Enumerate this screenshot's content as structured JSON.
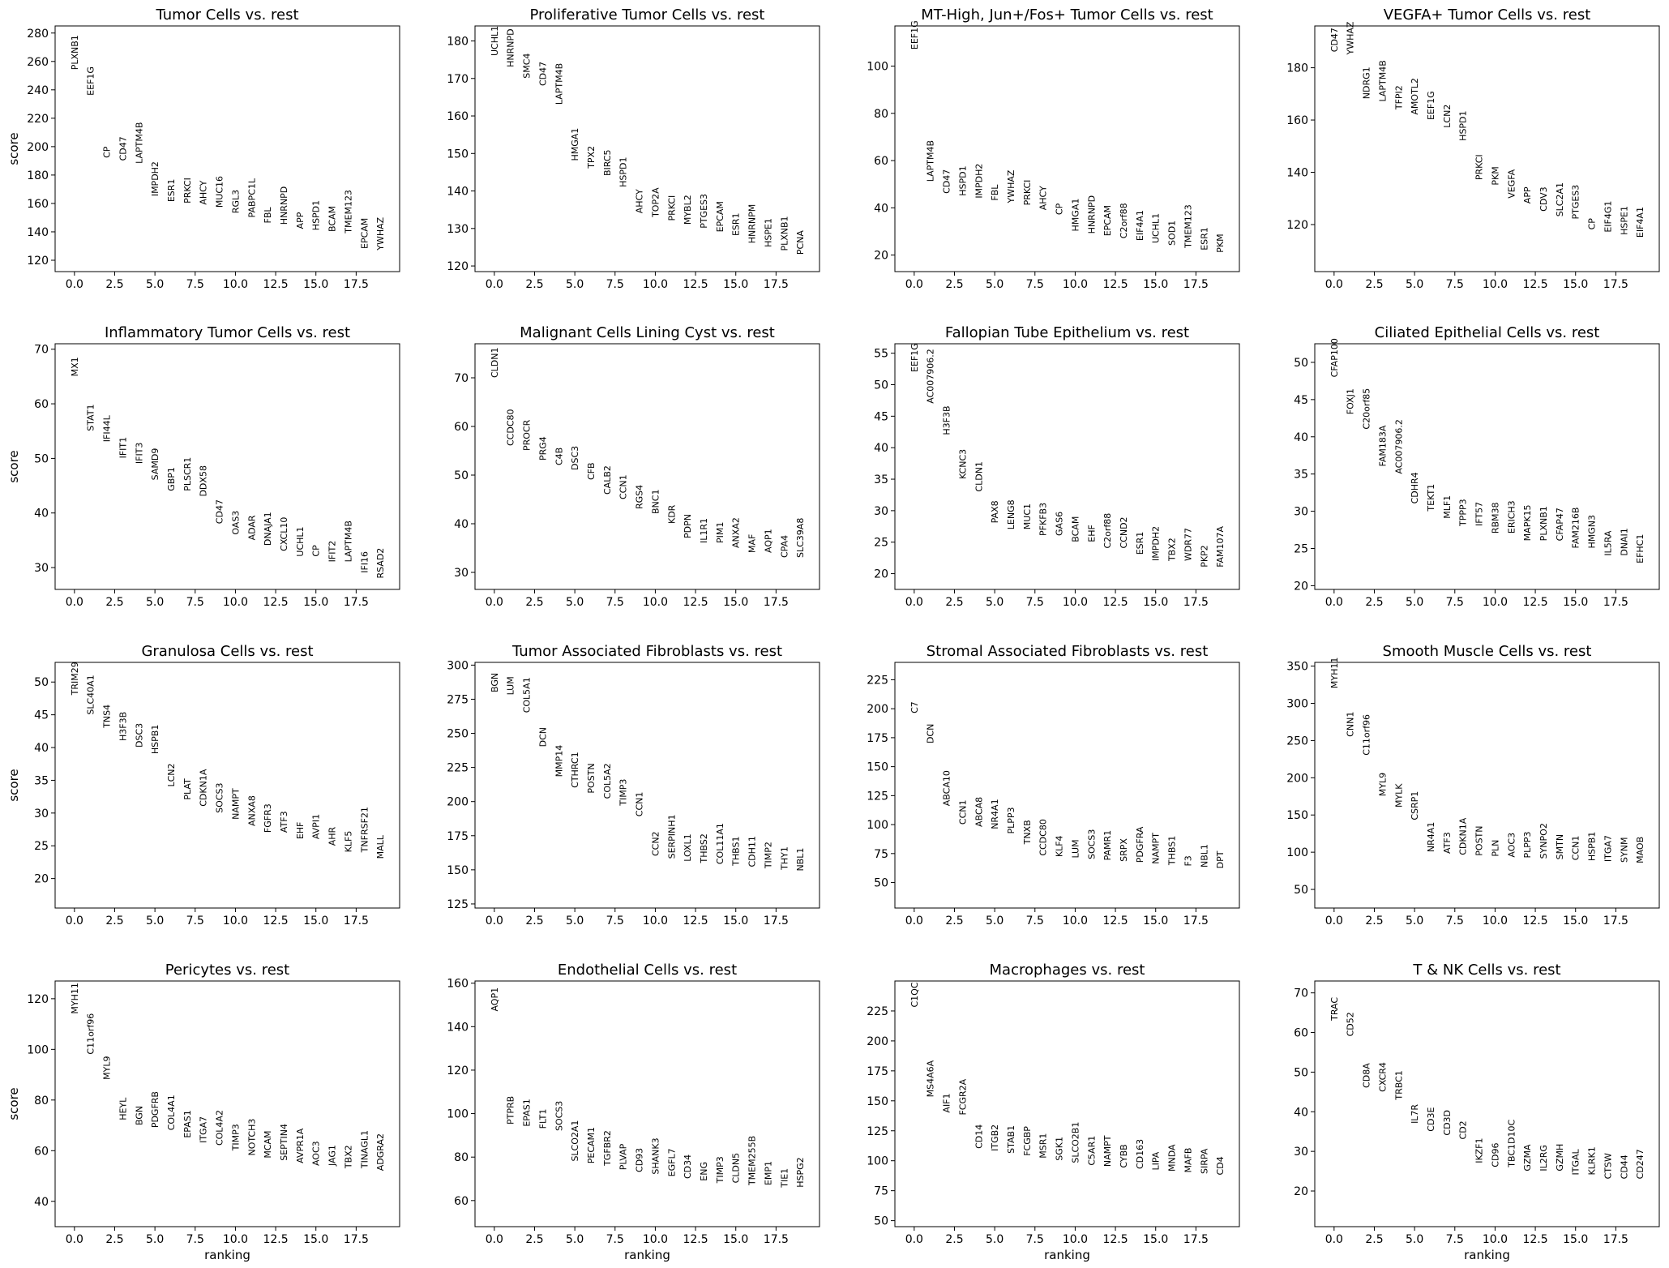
{
  "chart_data": [
    {
      "type": "scatter",
      "title": "Tumor Cells vs. rest",
      "xlabel": "",
      "ylabel": "score",
      "ylim": [
        112,
        285
      ],
      "yticks": [
        120,
        140,
        160,
        180,
        200,
        220,
        240,
        260,
        280
      ],
      "genes": [
        "PLXNB1",
        "EEF1G",
        "CP",
        "CD47",
        "LAPTM4B",
        "IMPDH2",
        "ESR1",
        "PRKCI",
        "AHCY",
        "MUC16",
        "RGL3",
        "PABPC1L",
        "FBL",
        "HNRNPD",
        "APP",
        "HSPD1",
        "BCAM",
        "TMEM123",
        "EPCAM",
        "YWHAZ"
      ],
      "values": [
        254,
        236,
        192,
        190,
        188,
        165,
        161,
        160,
        159,
        157,
        153,
        150,
        146,
        145,
        142,
        141,
        140,
        139,
        128,
        127
      ]
    },
    {
      "type": "scatter",
      "title": "Proliferative Tumor Cells vs. rest",
      "xlabel": "",
      "ylabel": "",
      "ylim": [
        118.5,
        184
      ],
      "yticks": [
        120,
        130,
        140,
        150,
        160,
        170,
        180
      ],
      "genes": [
        "UCHL1",
        "HNRNPD",
        "SMC4",
        "CD47",
        "LAPTM4B",
        "HMGA1",
        "TPX2",
        "BIRC5",
        "HSPD1",
        "AHCY",
        "TOP2A",
        "PRKCI",
        "MYBL2",
        "PTGES3",
        "EPCAM",
        "ESR1",
        "HNRNPM",
        "HSPE1",
        "PLXNB1",
        "PCNA"
      ],
      "values": [
        176,
        173,
        170,
        168,
        163,
        148,
        146,
        144,
        141,
        134,
        133,
        132,
        131,
        130,
        129,
        128,
        126,
        125,
        124,
        123
      ]
    },
    {
      "type": "scatter",
      "title": "MT-High, Jun+/Fos+ Tumor Cells vs. rest",
      "xlabel": "",
      "ylabel": "",
      "ylim": [
        13,
        117
      ],
      "yticks": [
        20,
        40,
        60,
        80,
        100
      ],
      "genes": [
        "EEF1G",
        "LAPTM4B",
        "CD47",
        "HSPD1",
        "IMPDH2",
        "FBL",
        "YWHAZ",
        "PRKCI",
        "AHCY",
        "CP",
        "HMGA1",
        "HNRNPD",
        "EPCAM",
        "C2orf88",
        "EIF4A1",
        "UCHL1",
        "SOD1",
        "TMEM123",
        "ESR1",
        "PKM"
      ],
      "values": [
        107,
        51,
        46,
        45,
        44,
        43,
        42,
        41,
        39,
        37,
        30,
        29,
        28,
        27,
        26,
        25,
        24,
        23,
        22,
        21
      ]
    },
    {
      "type": "scatter",
      "title": "VEGFA+ Tumor Cells vs. rest",
      "xlabel": "",
      "ylabel": "",
      "ylim": [
        102,
        196
      ],
      "yticks": [
        120,
        140,
        160,
        180
      ],
      "genes": [
        "CD47",
        "YWHAZ",
        "NDRG1",
        "LAPTM4B",
        "TFPI2",
        "AMOTL2",
        "EEF1G",
        "LCN2",
        "HSPD1",
        "PRKCI",
        "PKM",
        "VEGFA",
        "APP",
        "CDV3",
        "SLC2A1",
        "PTGES3",
        "CP",
        "EIF4G1",
        "HSPE1",
        "EIF4A1"
      ],
      "values": [
        186,
        185,
        168,
        167,
        164,
        162,
        160,
        157,
        152,
        137,
        135,
        130,
        128,
        125,
        123,
        122,
        118,
        117,
        116,
        115
      ]
    },
    {
      "type": "scatter",
      "title": "Inflammatory Tumor Cells vs. rest",
      "xlabel": "",
      "ylabel": "score",
      "ylim": [
        26,
        71
      ],
      "yticks": [
        30,
        40,
        50,
        60,
        70
      ],
      "genes": [
        "MX1",
        "STAT1",
        "IFI44L",
        "IFIT1",
        "IFIT3",
        "SAMD9",
        "GBP1",
        "PLSCR1",
        "DDX58",
        "CD47",
        "OAS3",
        "ADAR",
        "DNAJA1",
        "CXCL10",
        "UCHL1",
        "CP",
        "IFIT2",
        "LAPTM4B",
        "IFI16",
        "RSAD2"
      ],
      "values": [
        65,
        55,
        53,
        50,
        49,
        46,
        44,
        44,
        43,
        38,
        36,
        35,
        34,
        33,
        32,
        32,
        31,
        31,
        29,
        28
      ]
    },
    {
      "type": "scatter",
      "title": "Malignant Cells Lining Cyst vs. rest",
      "xlabel": "",
      "ylabel": "",
      "ylim": [
        26.5,
        77
      ],
      "yticks": [
        30,
        40,
        50,
        60,
        70
      ],
      "genes": [
        "CLDN1",
        "CCDC80",
        "PROCR",
        "PRG4",
        "C4B",
        "DSC3",
        "CFB",
        "CALB2",
        "CCN1",
        "RGS4",
        "BNC1",
        "KDR",
        "PDPN",
        "IL1R1",
        "PIM1",
        "ANXA2",
        "MAF",
        "AQP1",
        "CPA4",
        "SLC39A8"
      ],
      "values": [
        70,
        56,
        55,
        53,
        52,
        51,
        49,
        46,
        45,
        43,
        42,
        40,
        37,
        36,
        36,
        35,
        34,
        34,
        33,
        33
      ]
    },
    {
      "type": "scatter",
      "title": "Fallopian Tube Epithelium vs. rest",
      "xlabel": "",
      "ylabel": "",
      "ylim": [
        17.5,
        56.5
      ],
      "yticks": [
        20,
        25,
        30,
        35,
        40,
        45,
        50,
        55
      ],
      "genes": [
        "EEF1G",
        "AC007906.2",
        "H3F3B",
        "KCNC3",
        "CLDN1",
        "PAX8",
        "LENG8",
        "MUC1",
        "PFKFB3",
        "GAS6",
        "BCAM",
        "EHF",
        "C2orf88",
        "CCND2",
        "ESR1",
        "IMPDH2",
        "TBX2",
        "WDR77",
        "PKP2",
        "FAM107A"
      ],
      "values": [
        52,
        47,
        42,
        35,
        33,
        28,
        27,
        27,
        26,
        26,
        25,
        25,
        24,
        24,
        23,
        22,
        22,
        22,
        21,
        21
      ]
    },
    {
      "type": "scatter",
      "title": "Ciliated Epithelial Cells vs. rest",
      "xlabel": "",
      "ylabel": "",
      "ylim": [
        19.5,
        52.5
      ],
      "yticks": [
        20,
        25,
        30,
        35,
        40,
        45,
        50
      ],
      "genes": [
        "CFAP100",
        "FOXJ1",
        "C20orf85",
        "FAM183A",
        "AC007906.2",
        "CDHR4",
        "TEKT1",
        "MLF1",
        "TPPP3",
        "IFT57",
        "RBM38",
        "ERICH3",
        "MAPK15",
        "PLXNB1",
        "CFAP47",
        "FAM216B",
        "HMGN3",
        "IL5RA",
        "DNAI1",
        "EFHC1"
      ],
      "values": [
        48,
        43,
        41,
        36,
        35,
        31,
        30,
        29,
        28,
        28,
        27,
        27,
        26,
        26,
        26,
        25,
        25,
        24,
        24,
        23
      ]
    },
    {
      "type": "scatter",
      "title": "Granulosa Cells vs. rest",
      "xlabel": "",
      "ylabel": "score",
      "ylim": [
        15.5,
        53
      ],
      "yticks": [
        20,
        25,
        30,
        35,
        40,
        45,
        50
      ],
      "genes": [
        "TRIM29",
        "SLC40A1",
        "TNS4",
        "H3F3B",
        "DSC3",
        "HSPB1",
        "LCN2",
        "PLAT",
        "CDKN1A",
        "SOCS3",
        "NAMPT",
        "ANXA8",
        "FGFR3",
        "ATF3",
        "EHF",
        "AVPI1",
        "AHR",
        "KLF5",
        "TNFRSF21",
        "MALL"
      ],
      "values": [
        48,
        45,
        43,
        41,
        40,
        39,
        34,
        32,
        31,
        30,
        29,
        28,
        27,
        27,
        26,
        26,
        25,
        24,
        24,
        23
      ]
    },
    {
      "type": "scatter",
      "title": "Tumor Associated Fibroblasts vs. rest",
      "xlabel": "",
      "ylabel": "",
      "ylim": [
        122,
        302
      ],
      "yticks": [
        125,
        150,
        175,
        200,
        225,
        250,
        275,
        300
      ],
      "genes": [
        "BGN",
        "LUM",
        "COL5A1",
        "DCN",
        "MMP14",
        "CTHRC1",
        "POSTN",
        "COL5A2",
        "TIMP3",
        "CCN1",
        "CCN2",
        "SERPINH1",
        "LOXL1",
        "THBS2",
        "COL11A1",
        "THBS1",
        "CDH11",
        "TIMP2",
        "THY1",
        "NBL1"
      ],
      "values": [
        280,
        278,
        265,
        240,
        218,
        210,
        206,
        202,
        197,
        189,
        160,
        158,
        156,
        155,
        154,
        153,
        152,
        151,
        150,
        149
      ]
    },
    {
      "type": "scatter",
      "title": "Stromal Associated Fibroblasts vs. rest",
      "xlabel": "",
      "ylabel": "",
      "ylim": [
        28,
        240
      ],
      "yticks": [
        50,
        75,
        100,
        125,
        150,
        175,
        200,
        225
      ],
      "genes": [
        "C7",
        "DCN",
        "ABCA10",
        "CCN1",
        "ABCA8",
        "NR4A1",
        "PLPP3",
        "TNXB",
        "CCDC80",
        "KLF4",
        "LUM",
        "SOCS3",
        "PAMR1",
        "SRPX",
        "PDGFRA",
        "NAMPT",
        "THBS1",
        "F3",
        "NBL1",
        "DPT"
      ],
      "values": [
        196,
        170,
        116,
        100,
        98,
        96,
        92,
        83,
        73,
        72,
        71,
        70,
        69,
        68,
        67,
        66,
        65,
        64,
        63,
        62
      ]
    },
    {
      "type": "scatter",
      "title": "Smooth Muscle Cells vs. rest",
      "xlabel": "",
      "ylabel": "",
      "ylim": [
        25,
        355
      ],
      "yticks": [
        50,
        100,
        150,
        200,
        250,
        300,
        350
      ],
      "genes": [
        "MYH11",
        "CNN1",
        "C11orf96",
        "MYL9",
        "MYLK",
        "CSRP1",
        "NR4A1",
        "ATF3",
        "CDKN1A",
        "POSTN",
        "PLN",
        "AOC3",
        "PLPP3",
        "SYNPO2",
        "SMTN",
        "CCN1",
        "HSPB1",
        "ITGA7",
        "SYNM",
        "MAOB"
      ],
      "values": [
        320,
        255,
        230,
        175,
        160,
        143,
        100,
        98,
        96,
        95,
        94,
        93,
        92,
        91,
        90,
        89,
        88,
        87,
        86,
        85
      ]
    },
    {
      "type": "scatter",
      "title": "Pericytes vs. rest",
      "xlabel": "ranking",
      "ylabel": "score",
      "ylim": [
        30,
        127
      ],
      "yticks": [
        40,
        60,
        80,
        100,
        120
      ],
      "genes": [
        "MYH11",
        "C11orf96",
        "MYL9",
        "HEYL",
        "BGN",
        "PDGFRB",
        "COL4A1",
        "EPAS1",
        "ITGA7",
        "COL4A2",
        "TIMP3",
        "NOTCH3",
        "MCAM",
        "SEPTIN4",
        "AVPR1A",
        "AOC3",
        "JAG1",
        "TBX2",
        "TINAGL1",
        "ADGRA2"
      ],
      "values": [
        114,
        98,
        88,
        72,
        70,
        69,
        68,
        65,
        63,
        62,
        60,
        58,
        57,
        56,
        55,
        54,
        54,
        53,
        53,
        52
      ]
    },
    {
      "type": "scatter",
      "title": "Endothelial Cells vs. rest",
      "xlabel": "ranking",
      "ylabel": "",
      "ylim": [
        48,
        161
      ],
      "yticks": [
        60,
        80,
        100,
        120,
        140,
        160
      ],
      "genes": [
        "AQP1",
        "PTPRB",
        "EPAS1",
        "FLT1",
        "SOCS3",
        "SLCO2A1",
        "PECAM1",
        "TGFBR2",
        "PLVAP",
        "CD93",
        "SHANK3",
        "EGFL7",
        "CD34",
        "ENG",
        "TIMP3",
        "CLDN5",
        "TMEM255B",
        "EMP1",
        "TIE1",
        "HSPG2"
      ],
      "values": [
        147,
        95,
        94,
        93,
        92,
        78,
        77,
        76,
        74,
        73,
        72,
        71,
        70,
        69,
        68,
        68,
        67,
        67,
        66,
        66
      ]
    },
    {
      "type": "scatter",
      "title": "Macrophages vs. rest",
      "xlabel": "ranking",
      "ylabel": "",
      "ylim": [
        45,
        250
      ],
      "yticks": [
        50,
        75,
        100,
        125,
        150,
        175,
        200,
        225
      ],
      "genes": [
        "C1QC",
        "MS4A6A",
        "AIF1",
        "FCGR2A",
        "CD14",
        "ITGB2",
        "STAB1",
        "FCGBP",
        "MSR1",
        "SGK1",
        "SLCO2B1",
        "C5AR1",
        "NAMPT",
        "CYBB",
        "CD163",
        "LIPA",
        "MNDA",
        "MAFB",
        "SIRPA",
        "CD4"
      ],
      "values": [
        228,
        153,
        140,
        138,
        110,
        108,
        106,
        104,
        102,
        100,
        98,
        96,
        95,
        94,
        93,
        92,
        91,
        90,
        89,
        88
      ]
    },
    {
      "type": "scatter",
      "title": "T & NK Cells vs. rest",
      "xlabel": "ranking",
      "ylabel": "",
      "ylim": [
        11,
        73
      ],
      "yticks": [
        20,
        30,
        40,
        50,
        60,
        70
      ],
      "genes": [
        "TRAC",
        "CD52",
        "CD8A",
        "CXCR4",
        "TRBC1",
        "IL7R",
        "CD3E",
        "CD3D",
        "CD2",
        "IKZF1",
        "CD96",
        "TBC1D10C",
        "GZMA",
        "IL2RG",
        "GZMH",
        "ITGAL",
        "KLRK1",
        "CTSW",
        "CD44",
        "CD247"
      ],
      "values": [
        63,
        59,
        46,
        45,
        43,
        37,
        35,
        34,
        33,
        27,
        26,
        26,
        25,
        25,
        25,
        24,
        24,
        23,
        23,
        23
      ]
    }
  ]
}
